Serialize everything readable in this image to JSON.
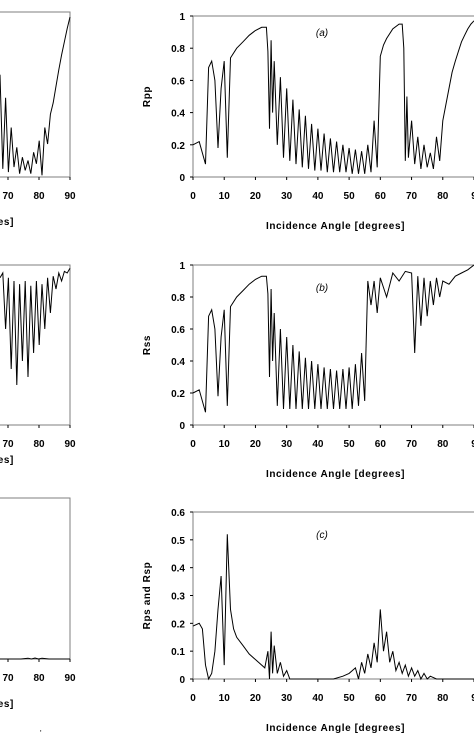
{
  "figure": {
    "panels_left_cropped": [
      {
        "x_ticks": [
          "70",
          "80",
          "90"
        ],
        "x_label_visible": "ees]",
        "curve_t": [
          0.0,
          0.04,
          0.08,
          0.12,
          0.16,
          0.2,
          0.24,
          0.28,
          0.32,
          0.36,
          0.4,
          0.44,
          0.48,
          0.52,
          0.56,
          0.6,
          0.64,
          0.68,
          0.72,
          0.76,
          0.8,
          0.84,
          0.88,
          0.92,
          0.96,
          1.0
        ],
        "curve_v": [
          0.62,
          0.05,
          0.48,
          0.03,
          0.3,
          0.06,
          0.18,
          0.02,
          0.12,
          0.04,
          0.1,
          0.02,
          0.15,
          0.08,
          0.22,
          0.01,
          0.3,
          0.2,
          0.38,
          0.45,
          0.55,
          0.65,
          0.74,
          0.82,
          0.9,
          0.97
        ]
      },
      {
        "x_ticks": [
          "70",
          "80",
          "90"
        ],
        "x_label_visible": "es]",
        "curve_t": [
          0.0,
          0.04,
          0.08,
          0.12,
          0.16,
          0.2,
          0.24,
          0.28,
          0.32,
          0.36,
          0.4,
          0.44,
          0.48,
          0.52,
          0.56,
          0.6,
          0.64,
          0.68,
          0.72,
          0.76,
          0.8,
          0.84,
          0.88,
          0.92,
          0.96,
          1.0
        ],
        "curve_v": [
          0.92,
          0.95,
          0.6,
          0.92,
          0.35,
          0.9,
          0.25,
          0.88,
          0.4,
          0.9,
          0.3,
          0.87,
          0.45,
          0.9,
          0.5,
          0.88,
          0.6,
          0.92,
          0.7,
          0.93,
          0.85,
          0.95,
          0.9,
          0.96,
          0.95,
          0.98
        ]
      },
      {
        "x_ticks": [
          "70",
          "80",
          "90"
        ],
        "x_label_visible": "es]",
        "curve_t": [
          0.0,
          0.1,
          0.2,
          0.3,
          0.4,
          0.45,
          0.5,
          0.55,
          0.6,
          0.7,
          0.8,
          0.9,
          1.0
        ],
        "curve_v": [
          0.0,
          0.0,
          0.0,
          0.0,
          0.005,
          0.0,
          0.006,
          0.0,
          0.005,
          0.0,
          0.0,
          0.0,
          0.0
        ]
      }
    ]
  },
  "chart_data": [
    {
      "type": "line",
      "tag": "(a)",
      "ylabel": "Rpp",
      "xlabel": "Incidence Angle [degrees]",
      "xlim": [
        0,
        90
      ],
      "ylim": [
        0,
        1
      ],
      "x_ticks": [
        "0",
        "10",
        "20",
        "30",
        "40",
        "50",
        "60",
        "70",
        "80",
        "9"
      ],
      "y_ticks": [
        "0",
        "0.2",
        "0.4",
        "0.6",
        "0.8",
        "1"
      ],
      "grid": false,
      "series": [
        {
          "x": [
            0,
            2,
            4,
            5,
            6,
            7,
            8,
            9,
            10,
            11,
            12,
            14,
            16,
            18,
            20,
            22,
            23.5,
            24,
            24.5,
            25,
            25.5,
            26,
            27,
            28,
            29,
            30,
            31,
            32,
            33,
            34,
            35,
            36,
            37,
            38,
            39,
            40,
            41,
            42,
            43,
            44,
            45,
            46,
            47,
            48,
            49,
            50,
            51,
            52,
            53,
            54,
            55,
            56,
            57,
            58,
            59,
            60,
            61,
            62,
            64,
            66,
            67,
            67.5,
            68,
            68.5,
            69,
            70,
            71,
            72,
            73,
            74,
            75,
            76,
            77,
            78,
            79,
            80,
            81,
            82,
            83,
            84,
            85,
            86,
            87,
            88,
            89,
            90
          ],
          "y": [
            0.2,
            0.22,
            0.08,
            0.68,
            0.72,
            0.6,
            0.18,
            0.55,
            0.72,
            0.12,
            0.74,
            0.8,
            0.84,
            0.88,
            0.91,
            0.93,
            0.93,
            0.78,
            0.3,
            0.85,
            0.4,
            0.72,
            0.2,
            0.62,
            0.12,
            0.55,
            0.1,
            0.48,
            0.08,
            0.42,
            0.06,
            0.38,
            0.05,
            0.33,
            0.04,
            0.3,
            0.04,
            0.27,
            0.03,
            0.24,
            0.03,
            0.22,
            0.03,
            0.2,
            0.03,
            0.18,
            0.02,
            0.17,
            0.02,
            0.16,
            0.02,
            0.2,
            0.03,
            0.35,
            0.06,
            0.75,
            0.82,
            0.86,
            0.92,
            0.95,
            0.95,
            0.8,
            0.1,
            0.5,
            0.12,
            0.35,
            0.08,
            0.25,
            0.05,
            0.2,
            0.06,
            0.15,
            0.05,
            0.25,
            0.1,
            0.35,
            0.45,
            0.55,
            0.65,
            0.72,
            0.78,
            0.84,
            0.88,
            0.92,
            0.95,
            0.97
          ]
        }
      ]
    },
    {
      "type": "line",
      "tag": "(b)",
      "ylabel": "Rss",
      "xlabel": "Incidence Angle [degrees]",
      "xlim": [
        0,
        90
      ],
      "ylim": [
        0,
        1
      ],
      "x_ticks": [
        "0",
        "10",
        "20",
        "30",
        "40",
        "50",
        "60",
        "70",
        "80",
        "9"
      ],
      "y_ticks": [
        "0",
        "0.2",
        "0.4",
        "0.6",
        "0.8",
        "1"
      ],
      "grid": false,
      "series": [
        {
          "x": [
            0,
            2,
            4,
            5,
            6,
            7,
            8,
            9,
            10,
            11,
            12,
            14,
            16,
            18,
            20,
            22,
            23.5,
            24,
            24.5,
            25,
            25.5,
            26,
            27,
            28,
            29,
            30,
            31,
            32,
            33,
            34,
            35,
            36,
            37,
            38,
            39,
            40,
            41,
            42,
            43,
            44,
            45,
            46,
            47,
            48,
            49,
            50,
            51,
            52,
            53,
            54,
            55,
            55.5,
            56,
            57,
            58,
            59,
            60,
            62,
            64,
            66,
            68,
            70,
            71,
            72,
            73,
            74,
            75,
            76,
            77,
            78,
            79,
            80,
            82,
            84,
            86,
            88,
            90
          ],
          "y": [
            0.2,
            0.22,
            0.08,
            0.68,
            0.72,
            0.6,
            0.18,
            0.55,
            0.72,
            0.12,
            0.74,
            0.8,
            0.84,
            0.88,
            0.91,
            0.93,
            0.93,
            0.82,
            0.3,
            0.85,
            0.4,
            0.7,
            0.12,
            0.6,
            0.1,
            0.55,
            0.1,
            0.5,
            0.1,
            0.46,
            0.1,
            0.42,
            0.1,
            0.4,
            0.1,
            0.38,
            0.1,
            0.36,
            0.1,
            0.35,
            0.1,
            0.34,
            0.1,
            0.35,
            0.1,
            0.36,
            0.1,
            0.38,
            0.12,
            0.45,
            0.15,
            0.55,
            0.9,
            0.75,
            0.9,
            0.7,
            0.92,
            0.8,
            0.95,
            0.9,
            0.96,
            0.95,
            0.45,
            0.93,
            0.62,
            0.92,
            0.68,
            0.9,
            0.75,
            0.92,
            0.8,
            0.9,
            0.88,
            0.93,
            0.95,
            0.97,
            1.0
          ]
        }
      ]
    },
    {
      "type": "line",
      "tag": "(c)",
      "ylabel": "Rps and Rsp",
      "xlabel": "Incidence Angle [degrees]",
      "xlim": [
        0,
        90
      ],
      "ylim": [
        0,
        0.6
      ],
      "x_ticks": [
        "0",
        "10",
        "20",
        "30",
        "40",
        "50",
        "60",
        "70",
        "80",
        "9"
      ],
      "y_ticks": [
        "0",
        "0.1",
        "0.2",
        "0.3",
        "0.4",
        "0.5",
        "0.6"
      ],
      "grid": false,
      "series": [
        {
          "x": [
            0,
            2,
            3,
            4,
            5,
            6,
            7,
            8,
            9,
            10,
            11,
            12,
            13,
            14,
            16,
            18,
            20,
            22,
            23,
            24,
            24.5,
            25,
            25.5,
            26,
            27,
            28,
            29,
            30,
            31,
            32,
            35,
            40,
            45,
            48,
            50,
            52,
            53,
            54,
            55,
            56,
            57,
            58,
            59,
            60,
            61,
            62,
            63,
            64,
            65,
            66,
            67,
            68,
            69,
            70,
            71,
            72,
            73,
            74,
            75,
            76,
            78,
            80,
            85,
            90
          ],
          "y": [
            0.19,
            0.2,
            0.18,
            0.05,
            0.0,
            0.02,
            0.1,
            0.25,
            0.37,
            0.05,
            0.52,
            0.25,
            0.18,
            0.15,
            0.12,
            0.09,
            0.07,
            0.05,
            0.04,
            0.1,
            0.0,
            0.17,
            0.02,
            0.12,
            0.02,
            0.06,
            0.01,
            0.03,
            0.0,
            0.0,
            0.0,
            0.0,
            0.0,
            0.01,
            0.02,
            0.04,
            0.0,
            0.06,
            0.02,
            0.09,
            0.04,
            0.13,
            0.06,
            0.25,
            0.1,
            0.17,
            0.06,
            0.1,
            0.03,
            0.06,
            0.02,
            0.05,
            0.01,
            0.04,
            0.01,
            0.03,
            0.0,
            0.02,
            0.0,
            0.01,
            0.0,
            0.0,
            0.0,
            0.0
          ]
        }
      ]
    }
  ],
  "footer_marks": {
    "visible_fragment": "'"
  }
}
